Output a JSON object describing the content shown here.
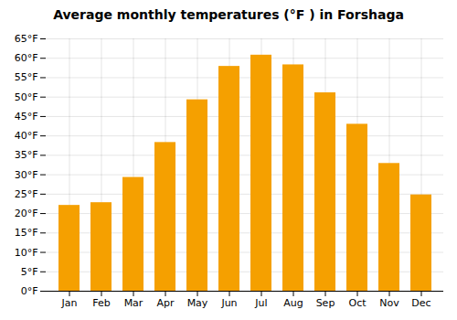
{
  "chart_data": {
    "type": "bar",
    "title": "Average monthly temperatures (°F ) in Forshaga",
    "categories": [
      "Jan",
      "Feb",
      "Mar",
      "Apr",
      "May",
      "Jun",
      "Jul",
      "Aug",
      "Sep",
      "Oct",
      "Nov",
      "Dec"
    ],
    "values": [
      22.1,
      22.8,
      29.3,
      38.3,
      49.3,
      57.9,
      60.8,
      58.3,
      51.1,
      43.0,
      32.9,
      24.8
    ],
    "color": "#F5A000",
    "ylim": [
      0,
      65
    ],
    "yticks": [
      {
        "value": 0,
        "label": "0°F"
      },
      {
        "value": 5,
        "label": "5°F"
      },
      {
        "value": 10,
        "label": "10°F"
      },
      {
        "value": 15,
        "label": "15°F"
      },
      {
        "value": 20,
        "label": "20°F"
      },
      {
        "value": 25,
        "label": "25°F"
      },
      {
        "value": 30,
        "label": "30°F"
      },
      {
        "value": 35,
        "label": "35°F"
      },
      {
        "value": 40,
        "label": "40°F"
      },
      {
        "value": 45,
        "label": "45°F"
      },
      {
        "value": 50,
        "label": "50°F"
      },
      {
        "value": 55,
        "label": "55°F"
      },
      {
        "value": 60,
        "label": "60°F"
      },
      {
        "value": 65,
        "label": "65°F"
      }
    ],
    "grid": true
  }
}
